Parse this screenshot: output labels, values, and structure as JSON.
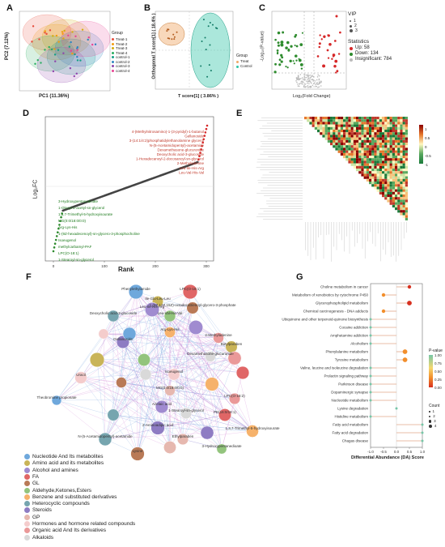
{
  "figure": {
    "panel_labels": [
      "A",
      "B",
      "C",
      "D",
      "E",
      "F",
      "G"
    ]
  },
  "panelA": {
    "xlabel": "PC1 (11.36%)",
    "ylabel": "PC2 (7.12%)",
    "legend_title": "Group",
    "groups": [
      "Treat-1",
      "Treat-2",
      "Treat-3",
      "Treat-4",
      "control-1",
      "control-2",
      "control-3",
      "control-4"
    ],
    "colors": [
      "#e74c3c",
      "#f39c12",
      "#d4ac0d",
      "#27ae60",
      "#16a085",
      "#2e86c1",
      "#8e44ad",
      "#e84393"
    ]
  },
  "panelB": {
    "xlabel": "T score[1] ( 3.86% )",
    "ylabel": "Orthogonal T score[1] ( 18.4% )",
    "legend_title": "Group",
    "groups": [
      "Treat",
      "Control"
    ],
    "colors": [
      "#f0a868",
      "#2ec4a6"
    ]
  },
  "panelC": {
    "xlabel": "Log₂(Fold Change)",
    "ylabel": "-Log₁₀(P-value)",
    "legend_vip_title": "VIP",
    "vip_values": [
      "1",
      "2",
      "3"
    ],
    "legend_stats_title": "Statistics",
    "stats": [
      "Up: 58",
      "Down: 134",
      "Insignificant: 784"
    ]
  },
  "panelD": {
    "ylabel": "Log₂FC",
    "xlabel": "Rank",
    "up_labels": [
      "4-(Methylnitrosamino)-1-(3-pyridyl)-1-butanol",
      "Gellanoside",
      "3-(14:1/4:2)phosphatidylethanolamine glycerol",
      "N-(5-Acetamidopentyl)-acetamide",
      "Dexamethasone-glucuronide",
      "Deoxycholic acid-3-glucoside",
      "1-Hexadecanoyl-2-docosanoyl-sn-glycerol",
      "2-Methyladenine",
      "Leu-Ile-His-Arg",
      "Leu-Val-His-Val"
    ],
    "down_labels": [
      "3-Hydroxypentanedioate",
      "1-Oleoyl-2-acetyl-sn-glycerol",
      "1,3,7-Trimethyl-5-hydroxyisourate",
      "MG(0:0/18:0/0:0)",
      "Arg-Lys-His",
      "1-(9Z-hexadecenoyl)-sn-glycero-3-phosphocholine",
      "Isoeugenol",
      "methylcarbamyl-PAF",
      "LPC(O-18:1)",
      "1-Stearoyl-sn-glycerol"
    ],
    "up_count_note": "",
    "xticks": [
      "0",
      "100",
      "200",
      "300"
    ]
  },
  "panelE": {
    "scale_ticks": [
      "1",
      "0.5",
      "0",
      "-0.5",
      "-1"
    ]
  },
  "panelF": {
    "legend": [
      {
        "label": "Nucleotide And Its metabolites",
        "color": "#6fa8dc"
      },
      {
        "label": "Amino acid and its metabolites",
        "color": "#c9b458"
      },
      {
        "label": "Alcohol and amines",
        "color": "#a08bd0"
      },
      {
        "label": "FA",
        "color": "#e06666"
      },
      {
        "label": "GL",
        "color": "#b97a57"
      },
      {
        "label": "Aldehyde,Ketones,Esters",
        "color": "#93c47d"
      },
      {
        "label": "Benzene and substituted derivatives",
        "color": "#f6b26b"
      },
      {
        "label": "Heterocyclic compounds",
        "color": "#76a5af"
      },
      {
        "label": "Steroids",
        "color": "#8e7cc3"
      },
      {
        "label": "GP",
        "color": "#e6b8af"
      },
      {
        "label": "Hormones and hormone related compounds",
        "color": "#f4cccc"
      },
      {
        "label": "Organic acid And Its derivatives",
        "color": "#ea9999"
      },
      {
        "label": "Alkaloids",
        "color": "#d9d9d9"
      }
    ],
    "nodes": [
      "Phenylethylamide",
      "Ile-Glu-Leu-Leu",
      "Leu-Ile-His-Arg",
      "LPC(O-18:1)",
      "1-(9Z,12Z,15Z)-octadecatrienoyl-glycero-3-phosphate",
      "Leu-Val-His-Val",
      "Arg-Lys-His",
      "Deoxycholic acid-3-glucoside",
      "Gellanoside",
      "MG(0:0/18:0/0:0)",
      "Isoeugenol",
      "2-Methyladenine",
      "Dexamethasone-glucuronide",
      "Theobromine propionate",
      "Butylparaben",
      "Azelaic acid",
      "PE(16:0/18:1)",
      "Lysine",
      "3-Hydroxypentanedioate",
      "1,3,7-Trimethyl-5-hydroxyisourate",
      "N-(5-Acetamidopentyl)-acetamide",
      "2-Aminoadipic acid",
      "Ethylparaben",
      "Uracil",
      "LPC(O-18:2)",
      "1-Stearoyl-sn-glycerol"
    ]
  },
  "panelG": {
    "xlabel": "Differential Abundance (DA) Score",
    "xticks": [
      "-1.0",
      "-0.5",
      "0.0",
      "0.5",
      "1.0"
    ],
    "pvalue_title": "P-value",
    "pvalue_ticks": [
      "1.00",
      "0.75",
      "0.50",
      "0.25",
      "0.00"
    ],
    "count_title": "Count",
    "count_values": [
      "1",
      "2",
      "3",
      "4"
    ],
    "pathways": [
      {
        "name": "Choline metabolism in cancer",
        "score": 0.5,
        "count": 2,
        "p": 0.1
      },
      {
        "name": "Metabolism of xenobiotics by cytochrome P450",
        "score": -0.5,
        "count": 2,
        "p": 0.3
      },
      {
        "name": "Glycerophospholipid metabolism",
        "score": 0.5,
        "count": 3,
        "p": 0.05
      },
      {
        "name": "Chemical carcinogenesis - DNA adducts",
        "score": -0.5,
        "count": 2,
        "p": 0.3
      },
      {
        "name": "Ubiquinone and other terpenoid-quinone biosynthesis",
        "score": -1.0,
        "count": 1,
        "p": 0.6
      },
      {
        "name": "Cocaine addiction",
        "score": -1.0,
        "count": 1,
        "p": 0.6
      },
      {
        "name": "Amphetamine addiction",
        "score": -1.0,
        "count": 1,
        "p": 0.6
      },
      {
        "name": "Alcoholism",
        "score": -1.0,
        "count": 1,
        "p": 0.6
      },
      {
        "name": "Phenylalanine metabolism",
        "score": 0.33,
        "count": 3,
        "p": 0.2
      },
      {
        "name": "Tyrosine metabolism",
        "score": 0.33,
        "count": 3,
        "p": 0.15
      },
      {
        "name": "Valine, leucine and isoleucine degradation",
        "score": -1.0,
        "count": 1,
        "p": 0.7
      },
      {
        "name": "Prolactin signaling pathway",
        "score": -1.0,
        "count": 1,
        "p": 0.7
      },
      {
        "name": "Parkinson disease",
        "score": -1.0,
        "count": 1,
        "p": 0.7
      },
      {
        "name": "Dopaminergic synapse",
        "score": -1.0,
        "count": 1,
        "p": 0.7
      },
      {
        "name": "Nucleotide metabolism",
        "score": -1.0,
        "count": 1,
        "p": 0.7
      },
      {
        "name": "Lysine degradation",
        "score": 0.0,
        "count": 1,
        "p": 0.8
      },
      {
        "name": "Histidine metabolism",
        "score": -1.0,
        "count": 1,
        "p": 0.8
      },
      {
        "name": "Fatty acid metabolism",
        "score": 1.0,
        "count": 1,
        "p": 0.8
      },
      {
        "name": "Fatty acid degradation",
        "score": 1.0,
        "count": 1,
        "p": 0.8
      },
      {
        "name": "Chagas disease",
        "score": 1.0,
        "count": 1,
        "p": 0.8
      }
    ]
  }
}
